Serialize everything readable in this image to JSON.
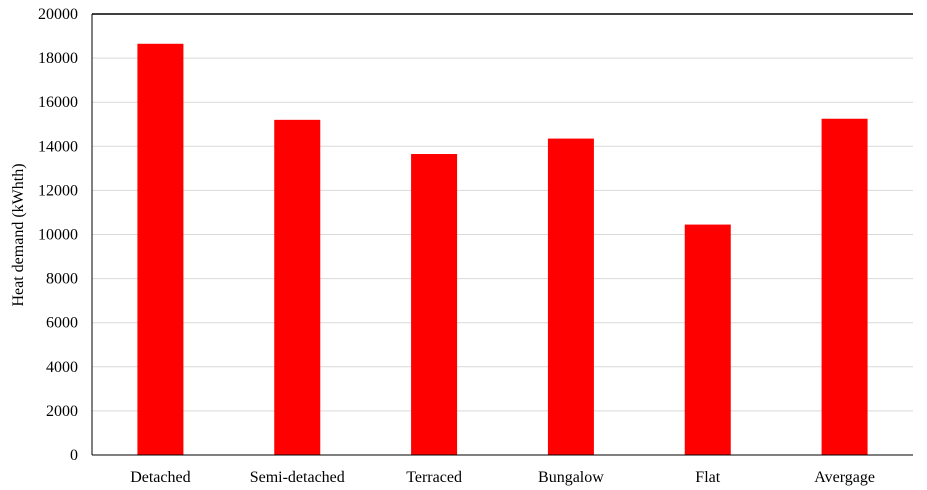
{
  "chart_data": {
    "type": "bar",
    "categories": [
      "Detached",
      "Semi-detached",
      "Terraced",
      "Bungalow",
      "Flat",
      "Avergage"
    ],
    "values": [
      18650,
      15200,
      13650,
      14350,
      10450,
      15250
    ],
    "title": "",
    "xlabel": "",
    "ylabel": "Heat demand (kWhth)",
    "ylim": [
      0,
      20000
    ],
    "yticks": [
      0,
      2000,
      4000,
      6000,
      8000,
      10000,
      12000,
      14000,
      16000,
      18000,
      20000
    ],
    "grid": true,
    "legend": "none",
    "bar_color": "#ff0000",
    "grid_color": "#d9d9d9"
  }
}
